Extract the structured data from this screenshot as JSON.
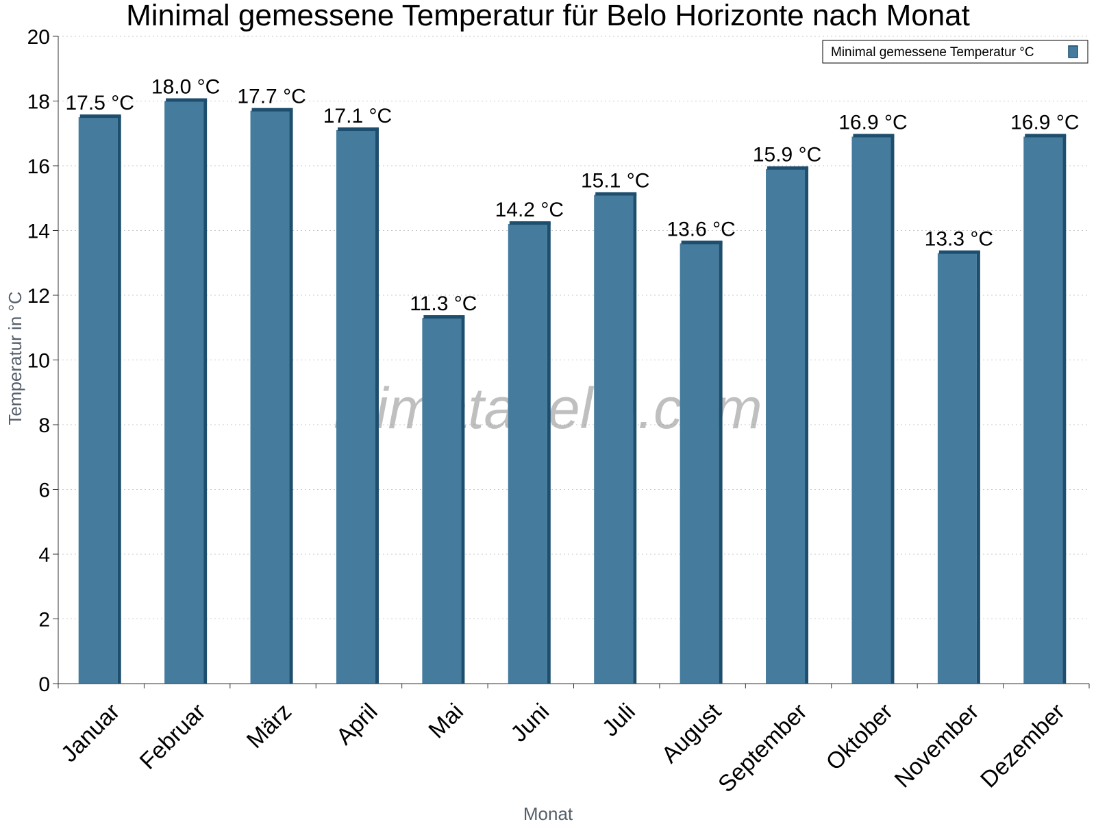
{
  "chart_data": {
    "type": "bar",
    "title": "Minimal gemessene Temperatur für Belo Horizonte nach Monat",
    "xlabel": "Monat",
    "ylabel": "Temperatur in °C",
    "ylim": [
      0,
      20
    ],
    "yticks": [
      0,
      2,
      4,
      6,
      8,
      10,
      12,
      14,
      16,
      18,
      20
    ],
    "grid": true,
    "legend_position": "top-right",
    "categories": [
      "Januar",
      "Februar",
      "März",
      "April",
      "Mai",
      "Juni",
      "Juli",
      "August",
      "September",
      "Oktober",
      "November",
      "Dezember"
    ],
    "series": [
      {
        "name": "Minimal gemessene Temperatur °C",
        "values": [
          17.5,
          18.0,
          17.7,
          17.1,
          11.3,
          14.2,
          15.1,
          13.6,
          15.9,
          16.9,
          13.3,
          16.9
        ],
        "labels": [
          "17.5 °C",
          "18.0 °C",
          "17.7 °C",
          "17.1 °C",
          "11.3 °C",
          "14.2 °C",
          "15.1 °C",
          "13.6 °C",
          "15.9 °C",
          "16.9 °C",
          "13.3 °C",
          "16.9 °C"
        ],
        "color": "#457b9d",
        "shade_color": "#1d4e6e"
      }
    ]
  },
  "watermark": "klimatabelle.com"
}
